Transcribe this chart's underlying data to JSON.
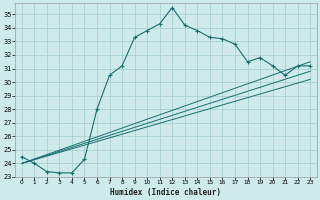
{
  "xlabel": "Humidex (Indice chaleur)",
  "bg_color": "#ceeaea",
  "grid_color": "#a8d0d0",
  "line_color": "#1a6e6e",
  "xlim": [
    -0.5,
    23.5
  ],
  "ylim": [
    23,
    35.8
  ],
  "xticks": [
    0,
    1,
    2,
    3,
    4,
    5,
    6,
    7,
    8,
    9,
    10,
    11,
    12,
    13,
    14,
    15,
    16,
    17,
    18,
    19,
    20,
    21,
    22,
    23
  ],
  "yticks": [
    23,
    24,
    25,
    26,
    27,
    28,
    29,
    30,
    31,
    32,
    33,
    34,
    35
  ],
  "curve1_x": [
    0,
    1,
    2,
    3,
    4,
    5,
    6,
    7,
    8,
    9,
    10,
    11,
    12,
    13,
    14,
    15,
    16,
    17,
    18,
    19,
    20,
    21,
    22,
    23
  ],
  "curve1_y": [
    24.5,
    24.0,
    23.4,
    23.3,
    23.3,
    24.3,
    28.0,
    30.5,
    31.2,
    33.3,
    33.8,
    34.3,
    35.5,
    34.2,
    33.8,
    33.3,
    33.2,
    32.8,
    31.5,
    31.8,
    31.2,
    30.5,
    31.2,
    31.2
  ],
  "line1_x": [
    0,
    23
  ],
  "line1_y": [
    24.0,
    31.5
  ],
  "line2_x": [
    0,
    23
  ],
  "line2_y": [
    24.0,
    30.2
  ],
  "line3_x": [
    0,
    23
  ],
  "line3_y": [
    24.0,
    30.8
  ]
}
